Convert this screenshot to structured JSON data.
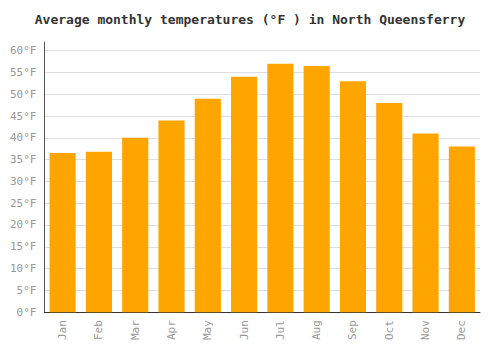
{
  "chart_data": {
    "type": "bar",
    "title": "Average monthly temperatures (°F ) in North Queensferry",
    "categories": [
      "Jan",
      "Feb",
      "Mar",
      "Apr",
      "May",
      "Jun",
      "Jul",
      "Aug",
      "Sep",
      "Oct",
      "Nov",
      "Dec"
    ],
    "values": [
      36.5,
      36.8,
      40.0,
      44.0,
      49.0,
      54.0,
      57.0,
      56.5,
      53.0,
      48.0,
      41.0,
      38.0
    ],
    "color": "#FFA500",
    "ylim": [
      0,
      62
    ],
    "yticks": [
      {
        "value": 0,
        "label": "0°F"
      },
      {
        "value": 5,
        "label": "5°F"
      },
      {
        "value": 10,
        "label": "10°F"
      },
      {
        "value": 15,
        "label": "15°F"
      },
      {
        "value": 20,
        "label": "20°F"
      },
      {
        "value": 25,
        "label": "25°F"
      },
      {
        "value": 30,
        "label": "30°F"
      },
      {
        "value": 35,
        "label": "35°F"
      },
      {
        "value": 40,
        "label": "40°F"
      },
      {
        "value": 45,
        "label": "45°F"
      },
      {
        "value": 50,
        "label": "50°F"
      },
      {
        "value": 55,
        "label": "55°F"
      },
      {
        "value": 60,
        "label": "60°F"
      }
    ],
    "grid": true
  }
}
